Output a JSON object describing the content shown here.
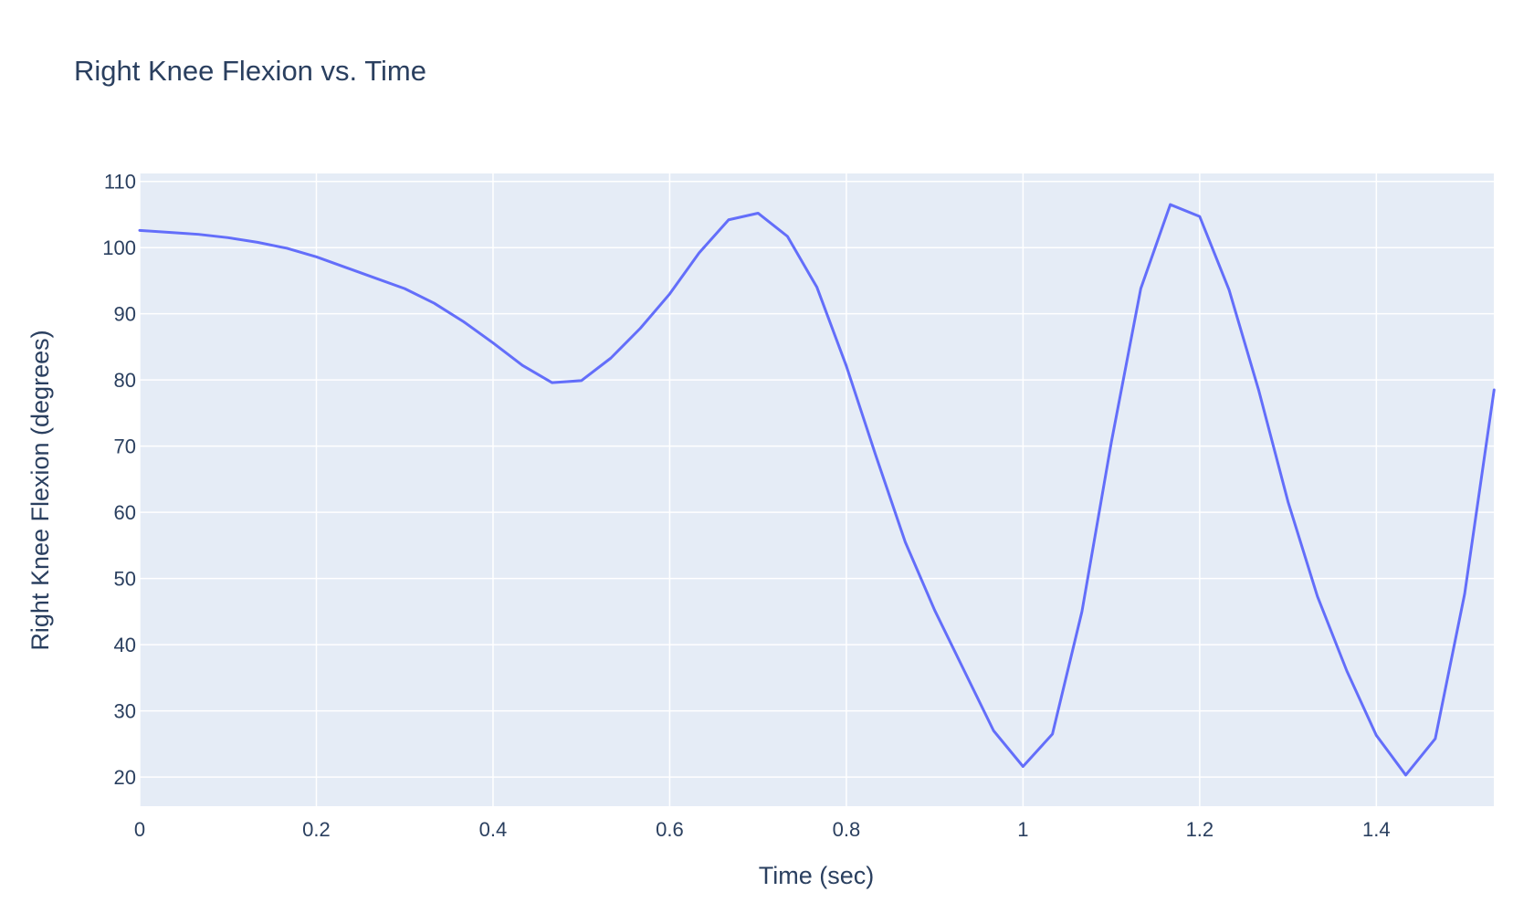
{
  "chart_data": {
    "type": "line",
    "title": "Right Knee Flexion vs. Time",
    "xlabel": "Time (sec)",
    "ylabel": "Right Knee Flexion (degrees)",
    "xlim": [
      0,
      1.533
    ],
    "ylim": [
      15.6,
      111.2
    ],
    "x_ticks": [
      0,
      0.2,
      0.4,
      0.6,
      0.8,
      1,
      1.2,
      1.4
    ],
    "x_tick_labels": [
      "0",
      "0.2",
      "0.4",
      "0.6",
      "0.8",
      "1",
      "1.2",
      "1.4"
    ],
    "y_ticks": [
      20,
      30,
      40,
      50,
      60,
      70,
      80,
      90,
      100,
      110
    ],
    "y_tick_labels": [
      "20",
      "30",
      "40",
      "50",
      "60",
      "70",
      "80",
      "90",
      "100",
      "110"
    ],
    "grid": true,
    "legend": "none",
    "colors": {
      "line": "#636efa",
      "plot_background": "#e5ecf6",
      "grid": "#ffffff",
      "text": "#2a3f5f"
    },
    "series": [
      {
        "x": [
          0,
          0.0333,
          0.0667,
          0.1,
          0.1333,
          0.1667,
          0.2,
          0.2333,
          0.2667,
          0.3,
          0.3333,
          0.3667,
          0.4,
          0.4333,
          0.4667,
          0.5,
          0.5333,
          0.5667,
          0.6,
          0.6333,
          0.6667,
          0.7,
          0.7333,
          0.7667,
          0.8,
          0.8333,
          0.8667,
          0.9,
          0.9333,
          0.9667,
          1.0,
          1.0333,
          1.0667,
          1.1,
          1.1333,
          1.1667,
          1.2,
          1.2333,
          1.2667,
          1.3,
          1.3333,
          1.3667,
          1.4,
          1.4333,
          1.4667,
          1.5,
          1.5333
        ],
        "y": [
          102.6,
          102.3,
          102.0,
          101.5,
          100.8,
          99.9,
          98.6,
          97.0,
          95.4,
          93.8,
          91.6,
          88.8,
          85.6,
          82.2,
          79.6,
          79.9,
          83.3,
          87.8,
          93.0,
          99.2,
          104.2,
          105.2,
          101.7,
          94.0,
          82.1,
          68.6,
          55.5,
          45.2,
          36.1,
          27.0,
          21.6,
          26.5,
          45.0,
          70.6,
          93.8,
          106.5,
          104.7,
          93.6,
          78.5,
          61.6,
          47.3,
          36.0,
          26.3,
          20.3,
          25.8,
          47.7,
          78.5
        ]
      }
    ]
  }
}
